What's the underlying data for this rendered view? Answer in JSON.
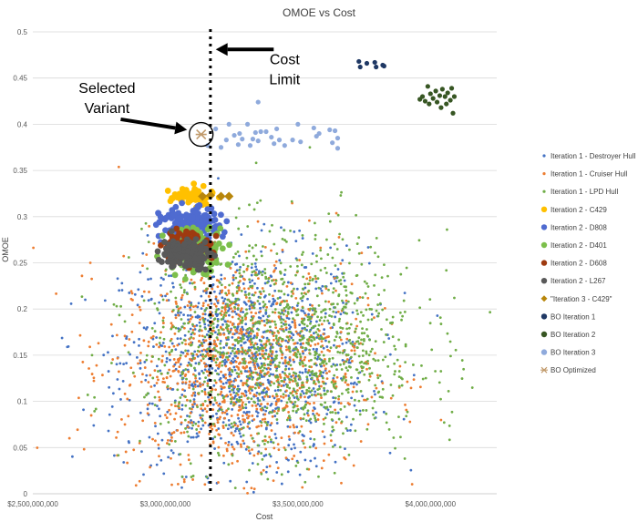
{
  "chart_data": {
    "type": "scatter",
    "title": "OMOE vs Cost",
    "xlabel": "Cost",
    "ylabel": "OMOE",
    "xlim": [
      2500000000,
      4250000000
    ],
    "ylim": [
      0,
      0.5
    ],
    "x_ticks": [
      2500000000,
      3000000000,
      3500000000,
      4000000000
    ],
    "x_tick_labels": [
      "$2,500,000,000",
      "$3,000,000,000",
      "$3,500,000,000",
      "$4,000,000,000"
    ],
    "y_ticks": [
      0,
      0.05,
      0.1,
      0.15,
      0.2,
      0.25,
      0.3,
      0.35,
      0.4,
      0.45,
      0.5
    ],
    "y_tick_labels": [
      "0",
      "0.05",
      "0.1",
      "0.15",
      "0.2",
      "0.25",
      "0.3",
      "0.35",
      "0.4",
      "0.45",
      "0.5"
    ],
    "grid": "horizontal",
    "legend_position": "right",
    "cost_limit": 3170000000,
    "annotations": [
      {
        "id": "cost_limit",
        "lines": [
          "Cost",
          "Limit"
        ],
        "x": 3450000000,
        "y": 0.465,
        "arrow_to": [
          3190000000,
          0.481
        ]
      },
      {
        "id": "selected_variant",
        "lines": [
          "Selected",
          "Variant"
        ],
        "x": 2780000000,
        "y": 0.434,
        "arrow_to": [
          3130000000,
          0.39
        ]
      }
    ],
    "series": [
      {
        "name": "Iteration 1 - Destroyer Hull",
        "color": "#4472c4",
        "marker": "dot",
        "cloud": {
          "cx": 3300000000,
          "cy": 0.145,
          "sx": 230000000,
          "sy": 0.06,
          "n": 1100
        }
      },
      {
        "name": "Iteration 1 - Cruiser Hull",
        "color": "#ed7d31",
        "marker": "dot",
        "cloud": {
          "cx": 3280000000,
          "cy": 0.14,
          "sx": 230000000,
          "sy": 0.06,
          "n": 1100
        }
      },
      {
        "name": "Iteration 1 - LPD Hull",
        "color": "#70ad47",
        "marker": "dot",
        "cloud": {
          "cx": 3450000000,
          "cy": 0.16,
          "sx": 260000000,
          "sy": 0.06,
          "n": 1200
        }
      },
      {
        "name": "Iteration 2 - C429",
        "color": "#ffc000",
        "marker": "blob",
        "cloud": {
          "cx": 3100000000,
          "cy": 0.322,
          "sx": 40000000,
          "sy": 0.005,
          "n": 60
        }
      },
      {
        "name": "Iteration 2 - D808",
        "color": "#4f6bd0",
        "marker": "blob",
        "cloud": {
          "cx": 3090000000,
          "cy": 0.29,
          "sx": 55000000,
          "sy": 0.01,
          "n": 160
        }
      },
      {
        "name": "Iteration 2 - D401",
        "color": "#7cbf4b",
        "marker": "blob",
        "cloud": {
          "cx": 3110000000,
          "cy": 0.265,
          "sx": 55000000,
          "sy": 0.012,
          "n": 140
        }
      },
      {
        "name": "Iteration 2 - D608",
        "color": "#9e3a10",
        "marker": "blob",
        "cloud": {
          "cx": 3080000000,
          "cy": 0.268,
          "sx": 45000000,
          "sy": 0.008,
          "n": 120
        }
      },
      {
        "name": "Iteration 2 - L267",
        "color": "#595959",
        "marker": "blob",
        "cloud": {
          "cx": 3080000000,
          "cy": 0.26,
          "sx": 45000000,
          "sy": 0.008,
          "n": 140
        }
      },
      {
        "name": "\"Iteration 3 - C429\"",
        "color": "#b8860b",
        "marker": "diamond",
        "points": [
          [
            3140000000,
            0.322
          ],
          [
            3170000000,
            0.323
          ],
          [
            3210000000,
            0.322
          ],
          [
            3240000000,
            0.322
          ]
        ]
      },
      {
        "name": "BO Iteration 1",
        "color": "#1f3864",
        "marker": "dot-large",
        "points": [
          [
            3730000000,
            0.468
          ],
          [
            3735000000,
            0.462
          ],
          [
            3760000000,
            0.466
          ],
          [
            3790000000,
            0.467
          ],
          [
            3795000000,
            0.462
          ],
          [
            3820000000,
            0.464
          ],
          [
            3825000000,
            0.463
          ]
        ]
      },
      {
        "name": "BO Iteration 2",
        "color": "#375623",
        "marker": "dot-large",
        "points": [
          [
            3960000000,
            0.427
          ],
          [
            3970000000,
            0.43
          ],
          [
            3980000000,
            0.425
          ],
          [
            3990000000,
            0.441
          ],
          [
            3995000000,
            0.422
          ],
          [
            4000000000,
            0.433
          ],
          [
            4010000000,
            0.428
          ],
          [
            4020000000,
            0.436
          ],
          [
            4025000000,
            0.424
          ],
          [
            4035000000,
            0.431
          ],
          [
            4040000000,
            0.418
          ],
          [
            4045000000,
            0.438
          ],
          [
            4055000000,
            0.43
          ],
          [
            4060000000,
            0.422
          ],
          [
            4065000000,
            0.434
          ],
          [
            4075000000,
            0.426
          ],
          [
            4080000000,
            0.439
          ],
          [
            4085000000,
            0.412
          ],
          [
            4090000000,
            0.43
          ]
        ]
      },
      {
        "name": "BO Iteration 3",
        "color": "#8faadc",
        "marker": "dot-large",
        "points": [
          [
            3160000000,
            0.377
          ],
          [
            3190000000,
            0.395
          ],
          [
            3210000000,
            0.375
          ],
          [
            3230000000,
            0.383
          ],
          [
            3240000000,
            0.4
          ],
          [
            3260000000,
            0.388
          ],
          [
            3275000000,
            0.378
          ],
          [
            3290000000,
            0.384
          ],
          [
            3310000000,
            0.4
          ],
          [
            3320000000,
            0.377
          ],
          [
            3330000000,
            0.384
          ],
          [
            3340000000,
            0.391
          ],
          [
            3350000000,
            0.382
          ],
          [
            3360000000,
            0.392
          ],
          [
            3380000000,
            0.392
          ],
          [
            3400000000,
            0.386
          ],
          [
            3410000000,
            0.379
          ],
          [
            3420000000,
            0.395
          ],
          [
            3430000000,
            0.383
          ],
          [
            3450000000,
            0.377
          ],
          [
            3480000000,
            0.383
          ],
          [
            3500000000,
            0.4
          ],
          [
            3510000000,
            0.381
          ],
          [
            3560000000,
            0.396
          ],
          [
            3570000000,
            0.387
          ],
          [
            3580000000,
            0.39
          ],
          [
            3620000000,
            0.394
          ],
          [
            3630000000,
            0.38
          ],
          [
            3640000000,
            0.393
          ],
          [
            3650000000,
            0.374
          ],
          [
            3650000000,
            0.385
          ],
          [
            3350000000,
            0.424
          ],
          [
            3280000000,
            0.39
          ]
        ]
      },
      {
        "name": "BO Optimized",
        "color": "#c19a6b",
        "marker": "x",
        "points": [
          [
            3135000000,
            0.389
          ]
        ]
      }
    ]
  }
}
